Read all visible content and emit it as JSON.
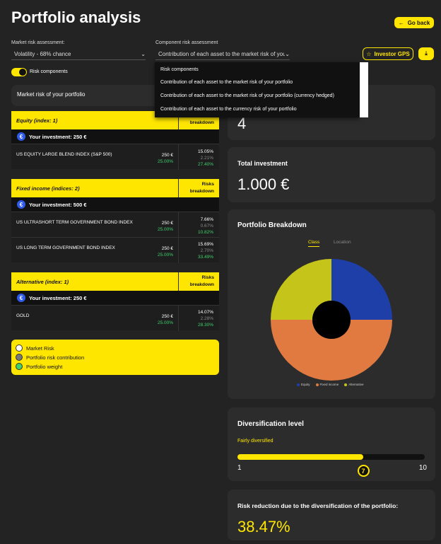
{
  "header": {
    "title": "Portfolio analysis",
    "go_back": "Go back"
  },
  "market_risk": {
    "label": "Market risk assessment:",
    "value": "Volatility - 68% chance"
  },
  "component_risk": {
    "label": "Component risk assessment",
    "value": "Contribution of each asset to the market risk of you",
    "options": [
      "Risk components",
      "Contribution of each asset to the market risk of your portfolio",
      "Contribution of each asset to the market risk of your portfolio (currency hedged)",
      "Contribution of each asset to the currency risk of your portfolio"
    ]
  },
  "toolbar": {
    "investor_gps": "Investor GPS"
  },
  "toggle": {
    "label": "Risk components",
    "on": true
  },
  "market_risk_panel": {
    "title": "Market risk of your portfolio"
  },
  "cards": [
    {
      "title": "Equity (index: 1)",
      "breakdown_label": "breakdown",
      "investment": "Your investment:  250 €",
      "rows": [
        {
          "name": "US EQUITY LARGE BLEND INDEX (S&P 500)",
          "amount": "250 €",
          "pct": "25.00%",
          "risk": "15.05%",
          "contrib": "2.21%",
          "weight": "27.40%"
        }
      ]
    },
    {
      "title": "Fixed income (indices: 2)",
      "breakdown_label": "Risks\nbreakdown",
      "investment": "Your investment:  500 €",
      "rows": [
        {
          "name": "US ULTRASHORT TERM GOVERNMENT BOND INDEX",
          "amount": "250 €",
          "pct": "25.00%",
          "risk": "7.66%",
          "contrib": "0.67%",
          "weight": "10.82%"
        },
        {
          "name": "US LONG TERM GOVERNMENT BOND INDEX",
          "amount": "250 €",
          "pct": "25.00%",
          "risk": "15.69%",
          "contrib": "2.70%",
          "weight": "33.49%"
        }
      ]
    },
    {
      "title": "Alternative (index: 1)",
      "breakdown_label": "Risks\nbreakdown",
      "investment": "Your investment:  250 €",
      "rows": [
        {
          "name": "GOLD",
          "amount": "250 €",
          "pct": "25.00%",
          "risk": "14.07%",
          "contrib": "2.28%",
          "weight": "28.30%"
        }
      ]
    }
  ],
  "legend": {
    "items": [
      "Market Risk",
      "Portfolio risk contribution",
      "Portfolio weight"
    ],
    "colors": [
      "#ffffff",
      "#777777",
      "#3fd16b"
    ]
  },
  "stats": {
    "count_value": "4",
    "total_label": "Total investment",
    "total_value": "1.000 €"
  },
  "breakdown": {
    "title": "Portfolio Breakdown",
    "tabs": [
      "Class",
      "Location"
    ],
    "legend": [
      "Equity",
      "Fixed income",
      "Alternative"
    ]
  },
  "chart_data": {
    "type": "pie",
    "categories": [
      "Equity",
      "Fixed income",
      "Alternative"
    ],
    "values": [
      25,
      50,
      25
    ],
    "colors": [
      "#1f3fa8",
      "#e07a40",
      "#c4c41a"
    ]
  },
  "diversification": {
    "title": "Diversification level",
    "status": "Fairly diversified",
    "min": "1",
    "max": "10",
    "level": "7",
    "fraction": 0.67
  },
  "risk_reduction": {
    "title": "Risk reduction due to the diversification of the portfolio:",
    "value": "38.47%"
  }
}
